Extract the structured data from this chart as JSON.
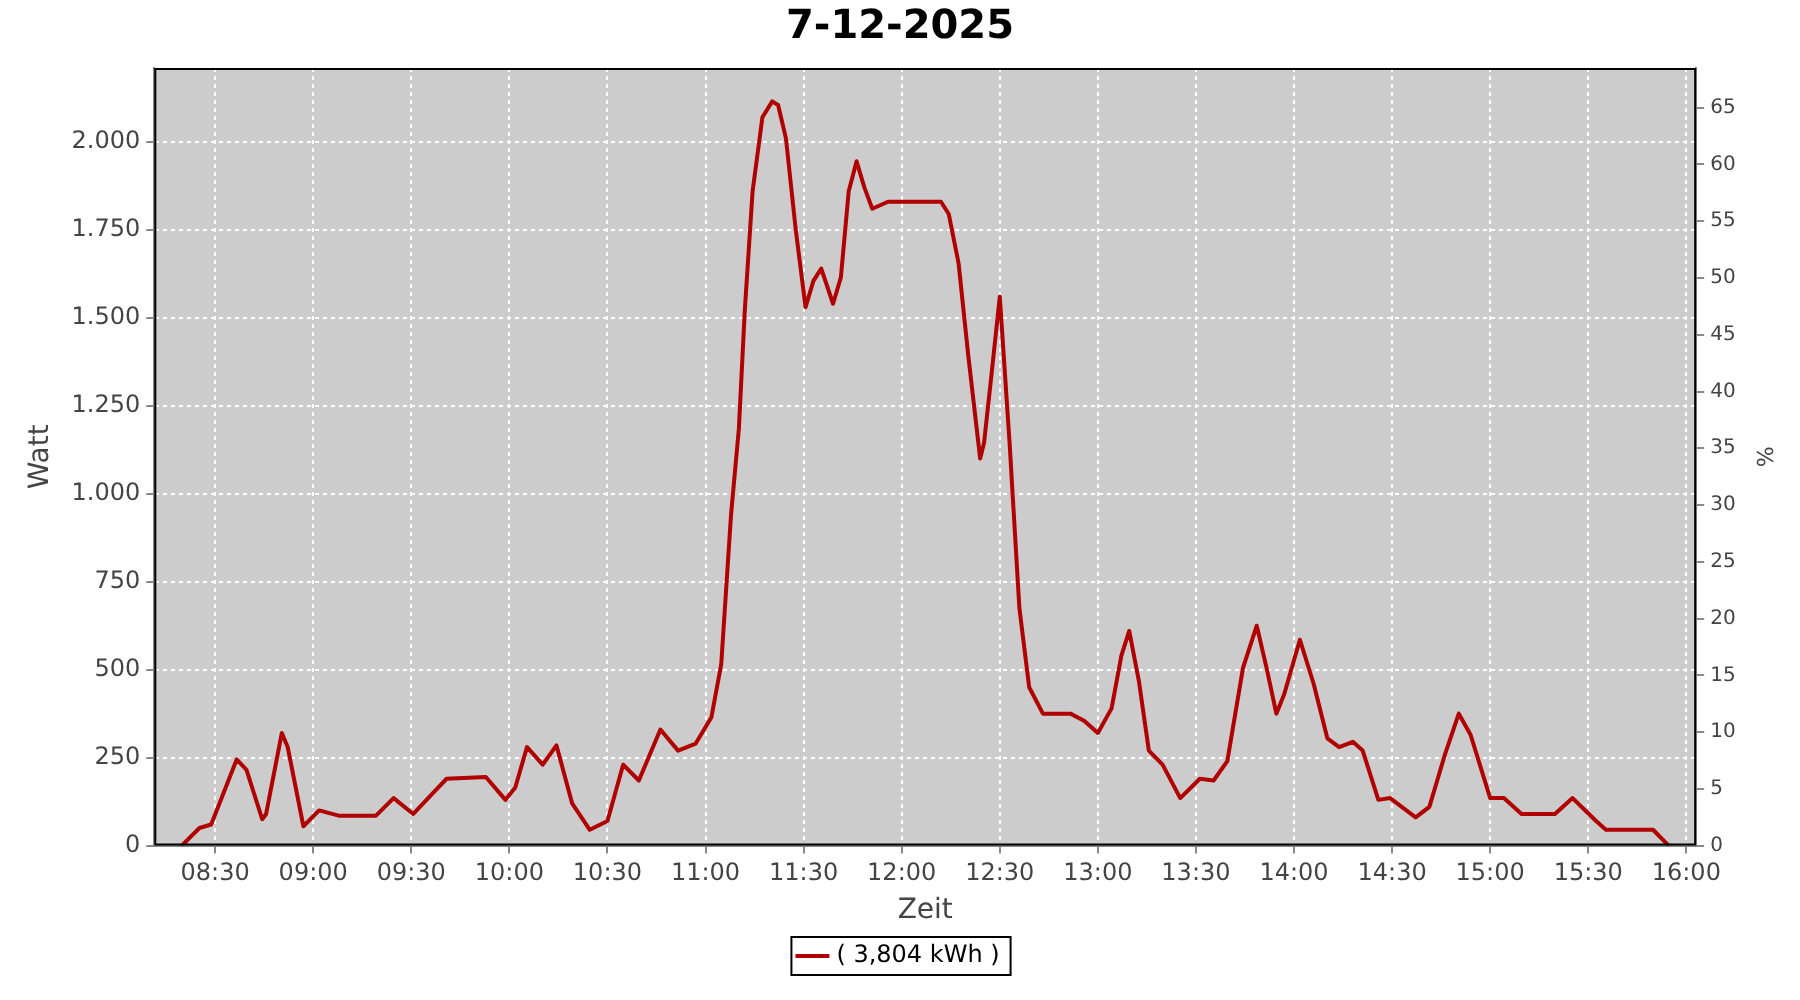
{
  "chart_data": {
    "type": "line",
    "title": "7-12-2025",
    "xlabel": "Zeit",
    "ylabel": "Watt",
    "y2label": "%",
    "xlim": [
      8.19,
      16.05
    ],
    "xticks": [
      {
        "value": 8.5,
        "label": "08:30"
      },
      {
        "value": 9,
        "label": "09:00"
      },
      {
        "value": 9.5,
        "label": "09:30"
      },
      {
        "value": 10,
        "label": "10:00"
      },
      {
        "value": 10.5,
        "label": "10:30"
      },
      {
        "value": 11,
        "label": "11:00"
      },
      {
        "value": 11.5,
        "label": "11:30"
      },
      {
        "value": 12,
        "label": "12:00"
      },
      {
        "value": 12.5,
        "label": "12:30"
      },
      {
        "value": 13,
        "label": "13:00"
      },
      {
        "value": 13.5,
        "label": "13:30"
      },
      {
        "value": 14,
        "label": "14:00"
      },
      {
        "value": 14.5,
        "label": "14:30"
      },
      {
        "value": 15,
        "label": "15:00"
      },
      {
        "value": 15.5,
        "label": "15:30"
      },
      {
        "value": 16,
        "label": "16:00"
      }
    ],
    "ylim": [
      0,
      2210
    ],
    "yticks": [
      0,
      250,
      500,
      750,
      {
        "value": 1000,
        "label": "1.000"
      },
      {
        "value": 1250,
        "label": "1.250"
      },
      {
        "value": 1500,
        "label": "1.500"
      },
      {
        "value": 1750,
        "label": "1.750"
      },
      {
        "value": 2000,
        "label": "2.000"
      }
    ],
    "y2lim": [
      0,
      68.5
    ],
    "y2ticks": [
      0,
      5,
      10,
      15,
      20,
      25,
      30,
      35,
      40,
      45,
      50,
      55,
      60,
      65
    ],
    "grid": true,
    "legend": "bottom",
    "marker": "none",
    "line_style": "solid",
    "series": [
      {
        "name": "( 3,804 kWh )",
        "color": "#b00000",
        "x": [
          8.33,
          8.42,
          8.48,
          8.54,
          8.61,
          8.66,
          8.74,
          8.76,
          8.84,
          8.87,
          8.95,
          9.03,
          9.13,
          9.32,
          9.41,
          9.51,
          9.62,
          9.68,
          9.88,
          9.98,
          10.03,
          10.09,
          10.17,
          10.24,
          10.32,
          10.41,
          10.5,
          10.58,
          10.66,
          10.77,
          10.86,
          10.95,
          11.03,
          11.08,
          11.13,
          11.17,
          11.2,
          11.24,
          11.29,
          11.34,
          11.37,
          11.41,
          11.46,
          11.51,
          11.55,
          11.59,
          11.65,
          11.69,
          11.73,
          11.77,
          11.81,
          11.85,
          11.93,
          12.1,
          12.2,
          12.24,
          12.29,
          12.34,
          12.4,
          12.42,
          12.46,
          12.5,
          12.55,
          12.6,
          12.65,
          12.72,
          12.86,
          12.93,
          13,
          13.07,
          13.12,
          13.16,
          13.21,
          13.26,
          13.33,
          13.42,
          13.52,
          13.59,
          13.66,
          13.74,
          13.81,
          13.86,
          13.91,
          13.95,
          14.03,
          14.1,
          14.17,
          14.23,
          14.3,
          14.35,
          14.43,
          14.49,
          14.62,
          14.69,
          14.77,
          14.84,
          14.9,
          15,
          15.07,
          15.16,
          15.33,
          15.42,
          15.54,
          15.59,
          15.83,
          15.91
        ],
        "values": [
          0,
          50,
          60,
          145,
          245,
          215,
          75,
          90,
          320,
          280,
          55,
          100,
          85,
          85,
          135,
          90,
          155,
          190,
          195,
          130,
          165,
          280,
          230,
          285,
          120,
          45,
          70,
          230,
          185,
          330,
          270,
          290,
          365,
          515,
          940,
          1185,
          1520,
          1860,
          2070,
          2115,
          2105,
          2010,
          1750,
          1530,
          1605,
          1640,
          1540,
          1615,
          1860,
          1945,
          1870,
          1810,
          1830,
          1830,
          1830,
          1795,
          1655,
          1390,
          1100,
          1145,
          1350,
          1560,
          1145,
          675,
          450,
          375,
          375,
          355,
          320,
          390,
          540,
          610,
          465,
          270,
          230,
          135,
          190,
          185,
          240,
          505,
          625,
          505,
          375,
          430,
          585,
          460,
          305,
          280,
          295,
          270,
          130,
          135,
          80,
          110,
          260,
          375,
          315,
          135,
          135,
          90,
          90,
          135,
          70,
          45,
          45,
          0
        ]
      }
    ]
  }
}
